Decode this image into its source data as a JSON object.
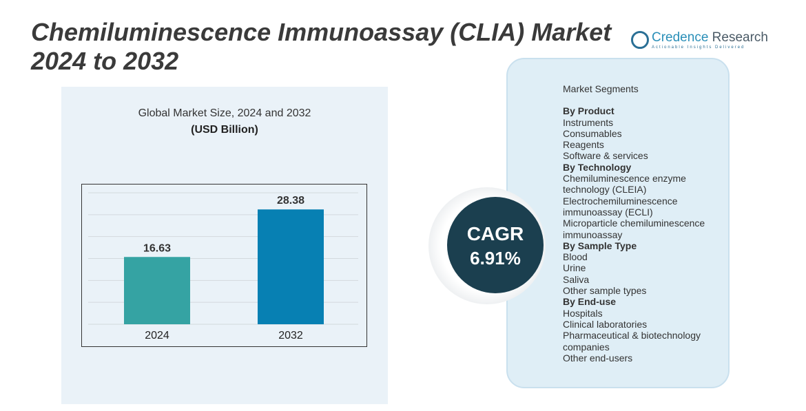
{
  "title_line1": "Chemiluminescence Immunoassay (CLIA) Market",
  "title_line2": "2024 to 2032",
  "logo": {
    "name1": "Credence",
    "name2": "Research",
    "tagline": "Actionable Insights Delivered"
  },
  "chart_data": {
    "type": "bar",
    "title": "Global Market Size, 2024 and 2032",
    "ylabel": "(USD Billion)",
    "categories": [
      "2024",
      "2032"
    ],
    "values": [
      16.63,
      28.38
    ],
    "value_labels": [
      "16.63",
      "28.38"
    ],
    "ylim": [
      0,
      32.5
    ],
    "grid": true,
    "colors": [
      "#35a3a3",
      "#0780b3"
    ]
  },
  "cagr": {
    "label": "CAGR",
    "value": "6.91%"
  },
  "segments": {
    "title": "Market Segments",
    "groups": [
      {
        "heading": "By Product",
        "items": [
          "Instruments",
          "Consumables",
          "Reagents",
          "Software & services"
        ]
      },
      {
        "heading": "By Technology",
        "items": [
          "Chemiluminescence enzyme technology (CLEIA)",
          "Electrochemiluminescence immunoassay (ECLI)",
          "Microparticle chemiluminescence immunoassay"
        ]
      },
      {
        "heading": "By Sample Type",
        "items": [
          "Blood",
          "Urine",
          "Saliva",
          "Other sample types"
        ]
      },
      {
        "heading": "By End-use",
        "items": [
          "Hospitals",
          "Clinical laboratories",
          "Pharmaceutical & biotechnology companies",
          "Other end-users"
        ]
      }
    ]
  }
}
